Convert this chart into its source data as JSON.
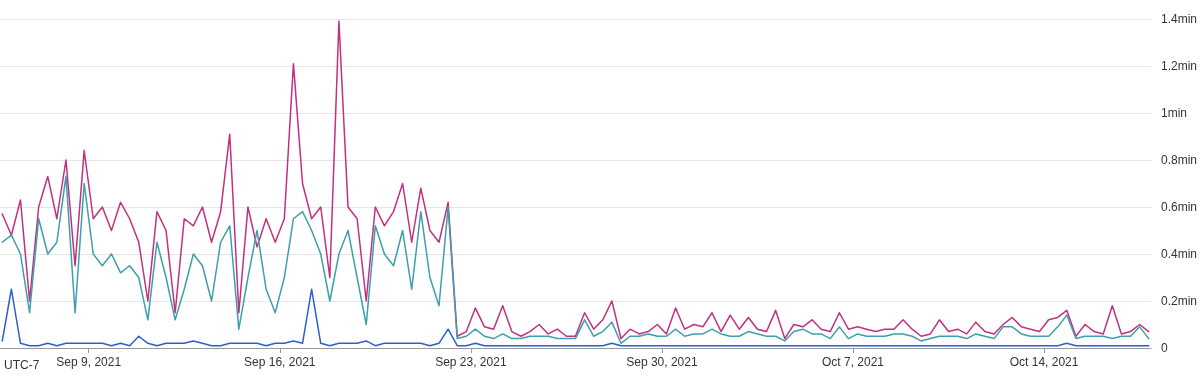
{
  "chart_data": {
    "type": "line",
    "annotations": [
      "UTC-7"
    ],
    "x": [
      "2021-09-05T20:00",
      "2021-09-06T04:00",
      "2021-09-06T12:00",
      "2021-09-06T20:00",
      "2021-09-07T04:00",
      "2021-09-07T12:00",
      "2021-09-07T20:00",
      "2021-09-08T04:00",
      "2021-09-08T12:00",
      "2021-09-08T20:00",
      "2021-09-09T04:00",
      "2021-09-09T12:00",
      "2021-09-09T20:00",
      "2021-09-10T04:00",
      "2021-09-10T12:00",
      "2021-09-10T20:00",
      "2021-09-11T04:00",
      "2021-09-11T12:00",
      "2021-09-11T20:00",
      "2021-09-12T04:00",
      "2021-09-12T12:00",
      "2021-09-12T20:00",
      "2021-09-13T04:00",
      "2021-09-13T12:00",
      "2021-09-13T20:00",
      "2021-09-14T04:00",
      "2021-09-14T12:00",
      "2021-09-14T20:00",
      "2021-09-15T04:00",
      "2021-09-15T12:00",
      "2021-09-15T20:00",
      "2021-09-16T04:00",
      "2021-09-16T12:00",
      "2021-09-16T20:00",
      "2021-09-17T04:00",
      "2021-09-17T12:00",
      "2021-09-17T20:00",
      "2021-09-18T04:00",
      "2021-09-18T12:00",
      "2021-09-18T20:00",
      "2021-09-19T04:00",
      "2021-09-19T12:00",
      "2021-09-19T20:00",
      "2021-09-20T04:00",
      "2021-09-20T12:00",
      "2021-09-20T20:00",
      "2021-09-21T04:00",
      "2021-09-21T12:00",
      "2021-09-21T20:00",
      "2021-09-22T04:00",
      "2021-09-22T12:00",
      "2021-09-22T20:00",
      "2021-09-23T04:00",
      "2021-09-23T12:00",
      "2021-09-23T20:00",
      "2021-09-24T04:00",
      "2021-09-24T12:00",
      "2021-09-24T20:00",
      "2021-09-25T04:00",
      "2021-09-25T12:00",
      "2021-09-25T20:00",
      "2021-09-26T04:00",
      "2021-09-26T12:00",
      "2021-09-26T20:00",
      "2021-09-27T04:00",
      "2021-09-27T12:00",
      "2021-09-27T20:00",
      "2021-09-28T04:00",
      "2021-09-28T12:00",
      "2021-09-28T20:00",
      "2021-09-29T04:00",
      "2021-09-29T12:00",
      "2021-09-29T20:00",
      "2021-09-30T04:00",
      "2021-09-30T12:00",
      "2021-09-30T20:00",
      "2021-10-01T04:00",
      "2021-10-01T12:00",
      "2021-10-01T20:00",
      "2021-10-02T04:00",
      "2021-10-02T12:00",
      "2021-10-02T20:00",
      "2021-10-03T04:00",
      "2021-10-03T12:00",
      "2021-10-03T20:00",
      "2021-10-04T04:00",
      "2021-10-04T12:00",
      "2021-10-04T20:00",
      "2021-10-05T04:00",
      "2021-10-05T12:00",
      "2021-10-05T20:00",
      "2021-10-06T04:00",
      "2021-10-06T12:00",
      "2021-10-06T20:00",
      "2021-10-07T04:00",
      "2021-10-07T12:00",
      "2021-10-07T20:00",
      "2021-10-08T04:00",
      "2021-10-08T12:00",
      "2021-10-08T20:00",
      "2021-10-09T04:00",
      "2021-10-09T12:00",
      "2021-10-09T20:00",
      "2021-10-10T04:00",
      "2021-10-10T12:00",
      "2021-10-10T20:00",
      "2021-10-11T04:00",
      "2021-10-11T12:00",
      "2021-10-11T20:00",
      "2021-10-12T04:00",
      "2021-10-12T12:00",
      "2021-10-12T20:00",
      "2021-10-13T04:00",
      "2021-10-13T12:00",
      "2021-10-13T20:00",
      "2021-10-14T04:00",
      "2021-10-14T12:00",
      "2021-10-14T20:00",
      "2021-10-15T04:00",
      "2021-10-15T12:00",
      "2021-10-15T20:00",
      "2021-10-16T04:00",
      "2021-10-16T12:00",
      "2021-10-16T20:00",
      "2021-10-17T04:00",
      "2021-10-17T12:00",
      "2021-10-17T20:00"
    ],
    "series": [
      {
        "color": "#c2307f",
        "values": [
          0.57,
          0.48,
          0.63,
          0.2,
          0.6,
          0.73,
          0.55,
          0.8,
          0.35,
          0.84,
          0.55,
          0.6,
          0.5,
          0.62,
          0.55,
          0.45,
          0.2,
          0.58,
          0.5,
          0.15,
          0.55,
          0.52,
          0.6,
          0.45,
          0.58,
          0.91,
          0.15,
          0.6,
          0.43,
          0.55,
          0.45,
          0.55,
          1.21,
          0.7,
          0.55,
          0.6,
          0.3,
          1.39,
          0.6,
          0.55,
          0.2,
          0.6,
          0.52,
          0.58,
          0.7,
          0.45,
          0.68,
          0.5,
          0.45,
          0.62,
          0.05,
          0.07,
          0.17,
          0.09,
          0.08,
          0.18,
          0.07,
          0.05,
          0.07,
          0.1,
          0.06,
          0.08,
          0.05,
          0.05,
          0.15,
          0.08,
          0.12,
          0.2,
          0.04,
          0.08,
          0.06,
          0.07,
          0.1,
          0.06,
          0.17,
          0.08,
          0.1,
          0.09,
          0.15,
          0.07,
          0.14,
          0.08,
          0.13,
          0.08,
          0.07,
          0.16,
          0.04,
          0.1,
          0.09,
          0.12,
          0.08,
          0.07,
          0.15,
          0.08,
          0.09,
          0.08,
          0.07,
          0.08,
          0.08,
          0.12,
          0.08,
          0.05,
          0.06,
          0.12,
          0.07,
          0.08,
          0.06,
          0.11,
          0.07,
          0.06,
          0.1,
          0.13,
          0.09,
          0.08,
          0.07,
          0.12,
          0.13,
          0.16,
          0.05,
          0.1,
          0.07,
          0.06,
          0.18,
          0.06,
          0.07,
          0.1,
          0.07
        ]
      },
      {
        "color": "#3d9fad",
        "values": [
          0.45,
          0.48,
          0.4,
          0.15,
          0.55,
          0.4,
          0.45,
          0.73,
          0.15,
          0.7,
          0.4,
          0.35,
          0.4,
          0.32,
          0.35,
          0.3,
          0.12,
          0.45,
          0.3,
          0.12,
          0.25,
          0.4,
          0.35,
          0.2,
          0.45,
          0.52,
          0.08,
          0.3,
          0.5,
          0.25,
          0.15,
          0.3,
          0.55,
          0.58,
          0.5,
          0.4,
          0.2,
          0.4,
          0.5,
          0.3,
          0.1,
          0.52,
          0.4,
          0.35,
          0.5,
          0.25,
          0.58,
          0.3,
          0.18,
          0.6,
          0.04,
          0.05,
          0.08,
          0.05,
          0.04,
          0.06,
          0.04,
          0.04,
          0.05,
          0.05,
          0.05,
          0.04,
          0.04,
          0.04,
          0.12,
          0.05,
          0.07,
          0.11,
          0.02,
          0.05,
          0.05,
          0.06,
          0.05,
          0.05,
          0.08,
          0.05,
          0.06,
          0.06,
          0.08,
          0.06,
          0.05,
          0.05,
          0.07,
          0.06,
          0.05,
          0.05,
          0.03,
          0.07,
          0.08,
          0.06,
          0.06,
          0.04,
          0.09,
          0.04,
          0.06,
          0.05,
          0.05,
          0.05,
          0.06,
          0.06,
          0.05,
          0.03,
          0.04,
          0.05,
          0.05,
          0.05,
          0.04,
          0.06,
          0.05,
          0.04,
          0.09,
          0.09,
          0.06,
          0.05,
          0.05,
          0.05,
          0.09,
          0.14,
          0.04,
          0.05,
          0.05,
          0.05,
          0.04,
          0.05,
          0.05,
          0.09,
          0.04
        ]
      },
      {
        "color": "#2b5fd0",
        "values": [
          0.03,
          0.25,
          0.02,
          0.01,
          0.01,
          0.02,
          0.01,
          0.02,
          0.02,
          0.02,
          0.02,
          0.02,
          0.01,
          0.02,
          0.01,
          0.05,
          0.02,
          0.01,
          0.02,
          0.02,
          0.02,
          0.03,
          0.02,
          0.01,
          0.01,
          0.02,
          0.02,
          0.02,
          0.02,
          0.01,
          0.02,
          0.02,
          0.03,
          0.02,
          0.25,
          0.02,
          0.01,
          0.02,
          0.02,
          0.02,
          0.03,
          0.01,
          0.02,
          0.02,
          0.02,
          0.02,
          0.02,
          0.01,
          0.02,
          0.08,
          0.01,
          0.01,
          0.02,
          0.01,
          0.01,
          0.01,
          0.01,
          0.01,
          0.01,
          0.01,
          0.01,
          0.01,
          0.01,
          0.01,
          0.01,
          0.01,
          0.01,
          0.02,
          0.01,
          0.01,
          0.01,
          0.01,
          0.01,
          0.01,
          0.01,
          0.01,
          0.01,
          0.01,
          0.01,
          0.01,
          0.01,
          0.01,
          0.01,
          0.01,
          0.01,
          0.01,
          0.01,
          0.01,
          0.01,
          0.01,
          0.01,
          0.01,
          0.01,
          0.01,
          0.01,
          0.01,
          0.01,
          0.01,
          0.01,
          0.01,
          0.01,
          0.01,
          0.01,
          0.01,
          0.01,
          0.01,
          0.01,
          0.01,
          0.01,
          0.01,
          0.01,
          0.01,
          0.01,
          0.01,
          0.01,
          0.01,
          0.01,
          0.02,
          0.01,
          0.01,
          0.01,
          0.01,
          0.01,
          0.01,
          0.01,
          0.01,
          0.01
        ]
      }
    ],
    "xlim": [
      "2021-09-05T18:00",
      "2021-10-17T22:00"
    ],
    "xticks": [
      {
        "value": "2021-09-09",
        "label": "Sep 9, 2021"
      },
      {
        "value": "2021-09-16",
        "label": "Sep 16, 2021"
      },
      {
        "value": "2021-09-23",
        "label": "Sep 23, 2021"
      },
      {
        "value": "2021-09-30",
        "label": "Sep 30, 2021"
      },
      {
        "value": "2021-10-07",
        "label": "Oct 7, 2021"
      },
      {
        "value": "2021-10-14",
        "label": "Oct 14, 2021"
      }
    ],
    "ylim": [
      0,
      1.4
    ],
    "yticks": [
      0,
      {
        "value": 0.2,
        "label": "0.2min"
      },
      {
        "value": 0.4,
        "label": "0.4min"
      },
      {
        "value": 0.6,
        "label": "0.6min"
      },
      {
        "value": 0.8,
        "label": "0.8min"
      },
      {
        "value": 1,
        "label": "1min"
      },
      {
        "value": 1.2,
        "label": "1.2min"
      },
      {
        "value": 1.4,
        "label": "1.4min"
      }
    ],
    "grid": "y"
  }
}
